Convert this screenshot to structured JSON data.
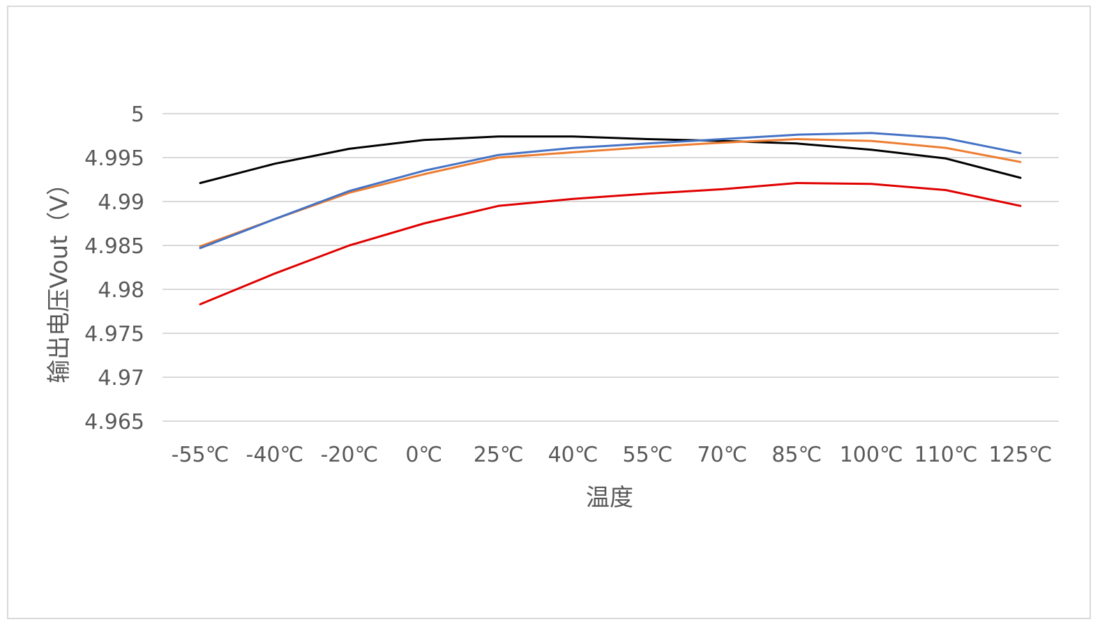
{
  "chart_data": {
    "type": "line",
    "title": "",
    "xlabel": "温度",
    "ylabel": "输出电压Vout（V）",
    "ylim": [
      4.965,
      5.0
    ],
    "yticks": [
      5,
      4.995,
      4.99,
      4.985,
      4.98,
      4.975,
      4.97,
      4.965
    ],
    "ytick_labels": [
      "5",
      "4.995",
      "4.99",
      "4.985",
      "4.98",
      "4.975",
      "4.97",
      "4.965"
    ],
    "categories": [
      "-55℃",
      "-40℃",
      "-20℃",
      "0℃",
      "25℃",
      "40℃",
      "55℃",
      "70℃",
      "85℃",
      "100℃",
      "110℃",
      "125℃"
    ],
    "grid": true,
    "legend": "none",
    "series": [
      {
        "color": "#000000",
        "values": [
          4.9921,
          4.9943,
          4.996,
          4.997,
          4.9974,
          4.9974,
          4.9971,
          4.9969,
          4.9966,
          4.9959,
          4.9949,
          4.9927
        ]
      },
      {
        "color": "#ED7D31",
        "values": [
          4.9849,
          4.988,
          4.991,
          4.9931,
          4.995,
          4.9956,
          4.9962,
          4.9967,
          4.9971,
          4.9969,
          4.9961,
          4.9945
        ]
      },
      {
        "color": "#4472C4",
        "values": [
          4.9847,
          4.988,
          4.9912,
          4.9935,
          4.9953,
          4.9961,
          4.9966,
          4.9971,
          4.9976,
          4.9978,
          4.9972,
          4.9955
        ]
      },
      {
        "color": "#E00000",
        "values": [
          4.9783,
          4.9818,
          4.985,
          4.9875,
          4.9895,
          4.9903,
          4.9909,
          4.9914,
          4.9921,
          4.992,
          4.9913,
          4.9895
        ]
      }
    ]
  }
}
